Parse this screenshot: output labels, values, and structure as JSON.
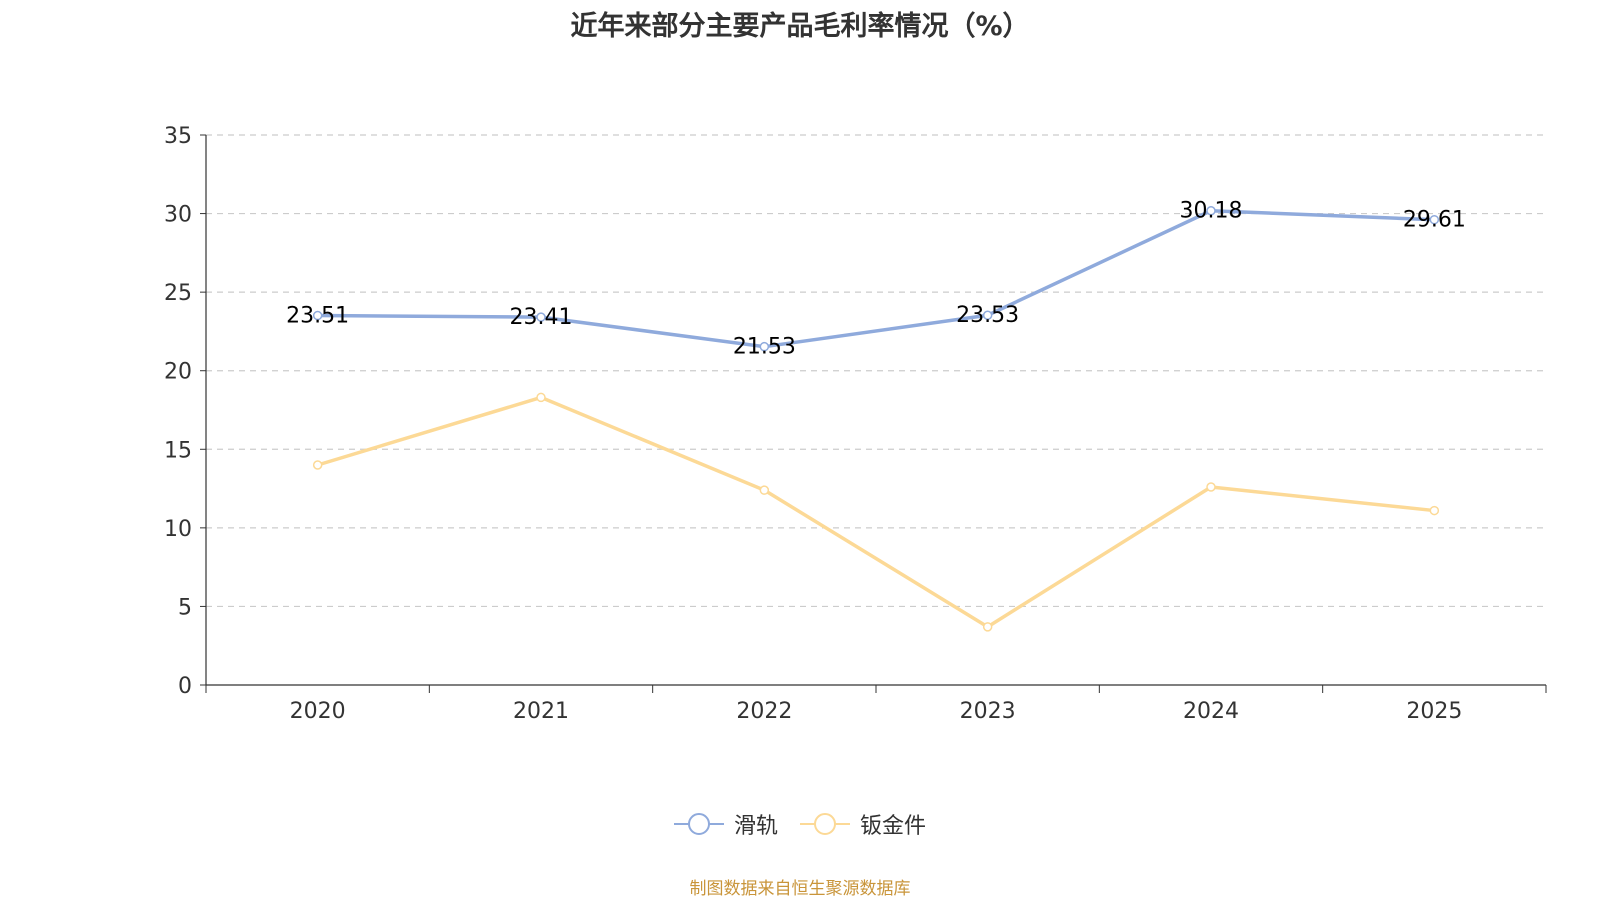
{
  "chart_data": {
    "type": "line",
    "title": "近年来部分主要产品毛利率情况（%）",
    "categories": [
      "2020",
      "2021",
      "2022",
      "2023",
      "2024",
      "2025"
    ],
    "ylim": [
      0,
      35
    ],
    "yticks": [
      0,
      5,
      10,
      15,
      20,
      25,
      30,
      35
    ],
    "grid": true,
    "legend_position": "bottom-center",
    "series": [
      {
        "name": "滑轨",
        "color": "#8faadc",
        "values": [
          23.51,
          23.41,
          21.53,
          23.53,
          30.18,
          29.61
        ],
        "show_labels": true
      },
      {
        "name": "钣金件",
        "color": "#fcd996",
        "values": [
          14.0,
          18.3,
          12.4,
          3.7,
          12.6,
          11.1
        ],
        "show_labels": false
      }
    ]
  },
  "source_note": "制图数据来自恒生聚源数据库"
}
